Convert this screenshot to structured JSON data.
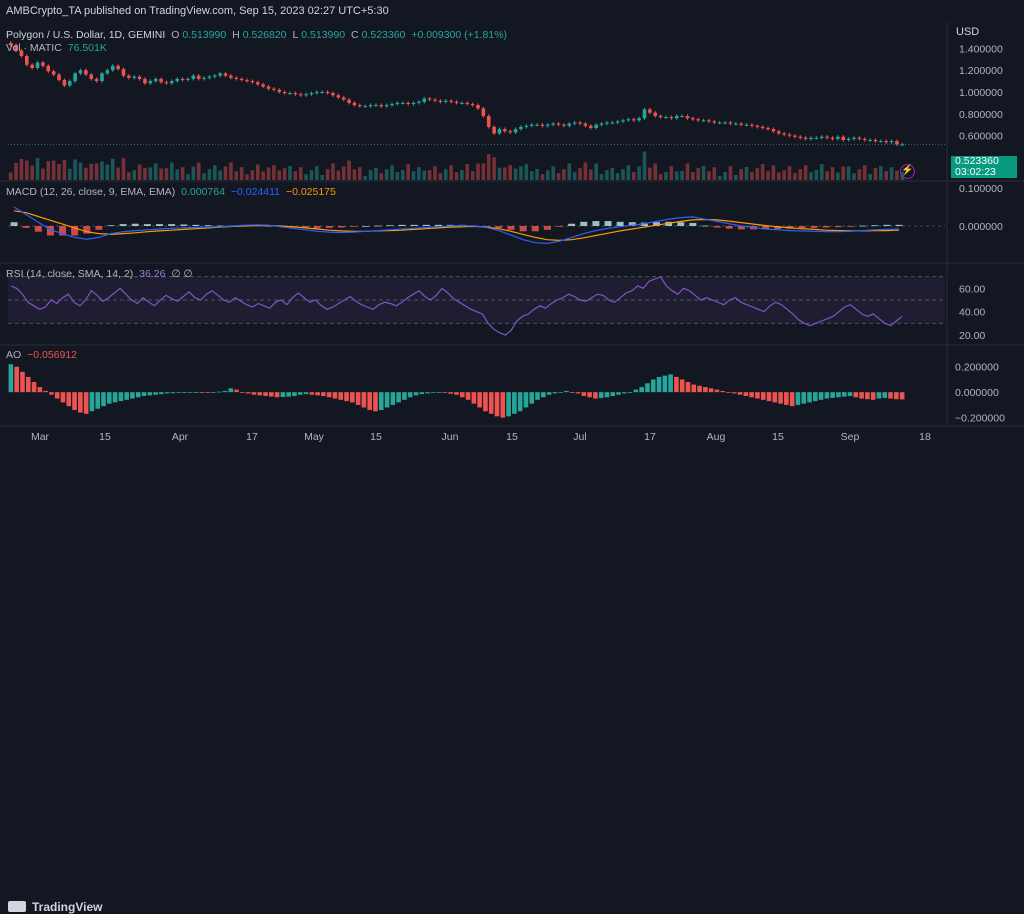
{
  "header": {
    "publisher": "AMBCrypto_TA published on TradingView.com, Sep 15, 2023 02:27 UTC+5:30"
  },
  "price_legend": {
    "symbol": "Polygon / U.S. Dollar, 1D, GEMINI",
    "o_label": "O",
    "o": "0.513990",
    "h_label": "H",
    "h": "0.526820",
    "l_label": "L",
    "l": "0.513990",
    "c_label": "C",
    "c": "0.523360",
    "change": "+0.009300 (+1.81%)"
  },
  "vol_legend": {
    "label": "Vol · MATIC",
    "value": "76.501K"
  },
  "macd_legend": {
    "label": "MACD (12, 26, close, 9, EMA, EMA)",
    "v1": "0.000764",
    "v2": "−0.024411",
    "v3": "−0.025175"
  },
  "rsi_legend": {
    "label": "RSI (14, close, SMA, 14, 2)",
    "value": "36.26",
    "extra": "∅ ∅"
  },
  "ao_legend": {
    "label": "AO",
    "value": "−0.056912"
  },
  "currency": "USD",
  "last_price": {
    "value": "0.523360",
    "countdown": "03:02:23"
  },
  "footer": {
    "brand": "TradingView"
  },
  "colors": {
    "up": "#26a69a",
    "down": "#ef5350",
    "macd": "#2962ff",
    "signal": "#ff9800",
    "rsi": "#7e57c2",
    "bg": "#131722"
  },
  "chart_data": [
    {
      "type": "candlestick",
      "title": "Polygon / U.S. Dollar, 1D, GEMINI",
      "x_ticks": [
        "Mar",
        "15",
        "Apr",
        "17",
        "May",
        "15",
        "Jun",
        "15",
        "Jul",
        "17",
        "Aug",
        "15",
        "Sep",
        "18"
      ],
      "y_ticks": [
        "1.400000",
        "1.200000",
        "1.000000",
        "0.800000",
        "0.600000"
      ],
      "ylim": [
        0.45,
        1.55
      ],
      "close_values": [
        1.43,
        1.38,
        1.33,
        1.25,
        1.22,
        1.27,
        1.24,
        1.19,
        1.16,
        1.11,
        1.06,
        1.1,
        1.17,
        1.2,
        1.16,
        1.12,
        1.1,
        1.17,
        1.2,
        1.24,
        1.21,
        1.15,
        1.13,
        1.14,
        1.12,
        1.08,
        1.1,
        1.12,
        1.09,
        1.08,
        1.1,
        1.12,
        1.11,
        1.12,
        1.15,
        1.12,
        1.13,
        1.14,
        1.15,
        1.17,
        1.15,
        1.13,
        1.12,
        1.11,
        1.1,
        1.09,
        1.07,
        1.05,
        1.03,
        1.02,
        1.0,
        0.99,
        0.99,
        0.98,
        0.97,
        0.98,
        0.99,
        1.0,
        1.0,
        0.99,
        0.97,
        0.95,
        0.93,
        0.9,
        0.88,
        0.87,
        0.87,
        0.88,
        0.88,
        0.87,
        0.88,
        0.89,
        0.9,
        0.9,
        0.89,
        0.9,
        0.91,
        0.94,
        0.93,
        0.92,
        0.91,
        0.92,
        0.91,
        0.9,
        0.9,
        0.89,
        0.88,
        0.85,
        0.78,
        0.68,
        0.62,
        0.66,
        0.64,
        0.63,
        0.66,
        0.68,
        0.69,
        0.7,
        0.7,
        0.69,
        0.7,
        0.71,
        0.7,
        0.69,
        0.71,
        0.72,
        0.71,
        0.69,
        0.67,
        0.7,
        0.71,
        0.72,
        0.72,
        0.73,
        0.74,
        0.75,
        0.74,
        0.76,
        0.84,
        0.81,
        0.78,
        0.77,
        0.77,
        0.76,
        0.78,
        0.78,
        0.76,
        0.75,
        0.74,
        0.74,
        0.73,
        0.72,
        0.72,
        0.72,
        0.71,
        0.71,
        0.7,
        0.7,
        0.69,
        0.68,
        0.67,
        0.66,
        0.64,
        0.62,
        0.61,
        0.6,
        0.59,
        0.58,
        0.57,
        0.58,
        0.58,
        0.59,
        0.58,
        0.57,
        0.59,
        0.56,
        0.57,
        0.58,
        0.57,
        0.56,
        0.56,
        0.55,
        0.55,
        0.54,
        0.55,
        0.52,
        0.52
      ]
    },
    {
      "type": "bar",
      "title": "Vol · MATIC",
      "y_ticks": []
    },
    {
      "type": "line",
      "title": "MACD (12, 26, close, 9, EMA, EMA)",
      "y_ticks": [
        "0.100000",
        "0.000000"
      ],
      "series": [
        {
          "name": "MACD",
          "values": [
            0.05,
            0.03,
            0.01,
            -0.01,
            -0.02,
            -0.03,
            -0.035,
            -0.03,
            -0.02,
            -0.015,
            -0.012,
            -0.01,
            -0.008,
            -0.006,
            -0.005,
            -0.004,
            -0.003,
            -0.002,
            0.0,
            0.002,
            0.003,
            0.002,
            -0.002,
            -0.006,
            -0.01,
            -0.014,
            -0.016,
            -0.017,
            -0.016,
            -0.014,
            -0.012,
            -0.01,
            -0.008,
            -0.006,
            -0.004,
            -0.002,
            0.0,
            0.001,
            0.0,
            -0.004,
            -0.012,
            -0.024,
            -0.036,
            -0.044,
            -0.046,
            -0.04,
            -0.03,
            -0.02,
            -0.012,
            -0.006,
            -0.002,
            0.002,
            0.006,
            0.012,
            0.018,
            0.022,
            0.024,
            0.018,
            0.012,
            0.006,
            0.0,
            -0.004,
            -0.008,
            -0.01,
            -0.012,
            -0.013,
            -0.014,
            -0.015,
            -0.015,
            -0.014,
            -0.012,
            -0.01,
            -0.009,
            -0.008
          ]
        },
        {
          "name": "Signal",
          "values": [
            0.04,
            0.035,
            0.025,
            0.015,
            0.005,
            -0.005,
            -0.015,
            -0.02,
            -0.022,
            -0.02,
            -0.018,
            -0.015,
            -0.013,
            -0.011,
            -0.009,
            -0.007,
            -0.005,
            -0.003,
            -0.001,
            0.0,
            0.001,
            0.001,
            0.0,
            -0.002,
            -0.005,
            -0.008,
            -0.011,
            -0.013,
            -0.014,
            -0.014,
            -0.013,
            -0.012,
            -0.011,
            -0.009,
            -0.007,
            -0.005,
            -0.003,
            -0.002,
            -0.001,
            -0.003,
            -0.007,
            -0.014,
            -0.022,
            -0.03,
            -0.036,
            -0.038,
            -0.036,
            -0.031,
            -0.025,
            -0.019,
            -0.013,
            -0.008,
            -0.003,
            0.002,
            0.007,
            0.012,
            0.016,
            0.017,
            0.016,
            0.013,
            0.009,
            0.005,
            0.001,
            -0.002,
            -0.005,
            -0.007,
            -0.009,
            -0.011,
            -0.012,
            -0.013,
            -0.013,
            -0.012,
            -0.012,
            -0.011
          ]
        }
      ]
    },
    {
      "type": "line",
      "title": "RSI (14, close, SMA, 14, 2)",
      "y_ticks": [
        "60.00",
        "40.00",
        "20.00"
      ],
      "ylim": [
        14,
        74
      ],
      "values": [
        62,
        60,
        55,
        48,
        45,
        42,
        44,
        50,
        47,
        52,
        55,
        48,
        45,
        50,
        58,
        54,
        49,
        52,
        56,
        60,
        55,
        50,
        47,
        52,
        48,
        45,
        50,
        54,
        51,
        49,
        53,
        57,
        52,
        50,
        55,
        58,
        54,
        50,
        48,
        52,
        49,
        46,
        44,
        47,
        45,
        43,
        48,
        50,
        46,
        52,
        56,
        52,
        48,
        50,
        45,
        42,
        44,
        47,
        50,
        53,
        49,
        46,
        44,
        42,
        46,
        48,
        47,
        45,
        48,
        52,
        55,
        58,
        53,
        50,
        54,
        60,
        56,
        51,
        48,
        45,
        42,
        40,
        38,
        30,
        25,
        22,
        20,
        24,
        32,
        36,
        38,
        42,
        45,
        43,
        47,
        50,
        52,
        55,
        53,
        50,
        49,
        52,
        55,
        54,
        50,
        48,
        52,
        56,
        58,
        62,
        60,
        66,
        68,
        70,
        62,
        58,
        55,
        60,
        58,
        54,
        50,
        52,
        50,
        48,
        46,
        50,
        52,
        48,
        46,
        44,
        42,
        40,
        45,
        48,
        46,
        42,
        38,
        33,
        30,
        28,
        30,
        32,
        34,
        36,
        40,
        44,
        46,
        42,
        38,
        36,
        38,
        34,
        30,
        28,
        32,
        36
      ]
    },
    {
      "type": "bar",
      "title": "AO",
      "y_ticks": [
        "0.200000",
        "0.000000",
        "−0.200000"
      ],
      "ylim": [
        -0.25,
        0.3
      ],
      "values": [
        0.22,
        0.2,
        0.16,
        0.12,
        0.08,
        0.04,
        0.01,
        -0.02,
        -0.05,
        -0.08,
        -0.11,
        -0.14,
        -0.16,
        -0.17,
        -0.15,
        -0.13,
        -0.11,
        -0.09,
        -0.08,
        -0.07,
        -0.06,
        -0.05,
        -0.04,
        -0.03,
        -0.025,
        -0.02,
        -0.015,
        -0.01,
        -0.008,
        -0.006,
        -0.004,
        -0.003,
        -0.002,
        -0.004,
        -0.006,
        0.0,
        0.004,
        0.01,
        0.03,
        0.02,
        0.0,
        -0.01,
        -0.02,
        -0.025,
        -0.03,
        -0.035,
        -0.04,
        -0.038,
        -0.035,
        -0.03,
        -0.02,
        -0.015,
        -0.02,
        -0.025,
        -0.03,
        -0.04,
        -0.05,
        -0.06,
        -0.07,
        -0.08,
        -0.1,
        -0.12,
        -0.14,
        -0.15,
        -0.14,
        -0.12,
        -0.1,
        -0.08,
        -0.06,
        -0.04,
        -0.025,
        -0.015,
        -0.01,
        -0.005,
        0.0,
        -0.005,
        -0.012,
        -0.02,
        -0.04,
        -0.06,
        -0.09,
        -0.12,
        -0.15,
        -0.17,
        -0.19,
        -0.2,
        -0.19,
        -0.17,
        -0.15,
        -0.12,
        -0.09,
        -0.06,
        -0.04,
        -0.02,
        -0.01,
        0.0,
        0.01,
        0.0,
        -0.01,
        -0.03,
        -0.04,
        -0.05,
        -0.045,
        -0.04,
        -0.03,
        -0.02,
        -0.01,
        0.0,
        0.02,
        0.04,
        0.07,
        0.1,
        0.12,
        0.13,
        0.14,
        0.12,
        0.1,
        0.08,
        0.06,
        0.05,
        0.04,
        0.03,
        0.02,
        0.01,
        0.0,
        -0.01,
        -0.02,
        -0.03,
        -0.04,
        -0.05,
        -0.06,
        -0.07,
        -0.08,
        -0.09,
        -0.1,
        -0.11,
        -0.1,
        -0.09,
        -0.08,
        -0.07,
        -0.06,
        -0.05,
        -0.045,
        -0.04,
        -0.035,
        -0.03,
        -0.04,
        -0.05,
        -0.055,
        -0.06,
        -0.05,
        -0.045,
        -0.05,
        -0.055,
        -0.057
      ]
    }
  ]
}
